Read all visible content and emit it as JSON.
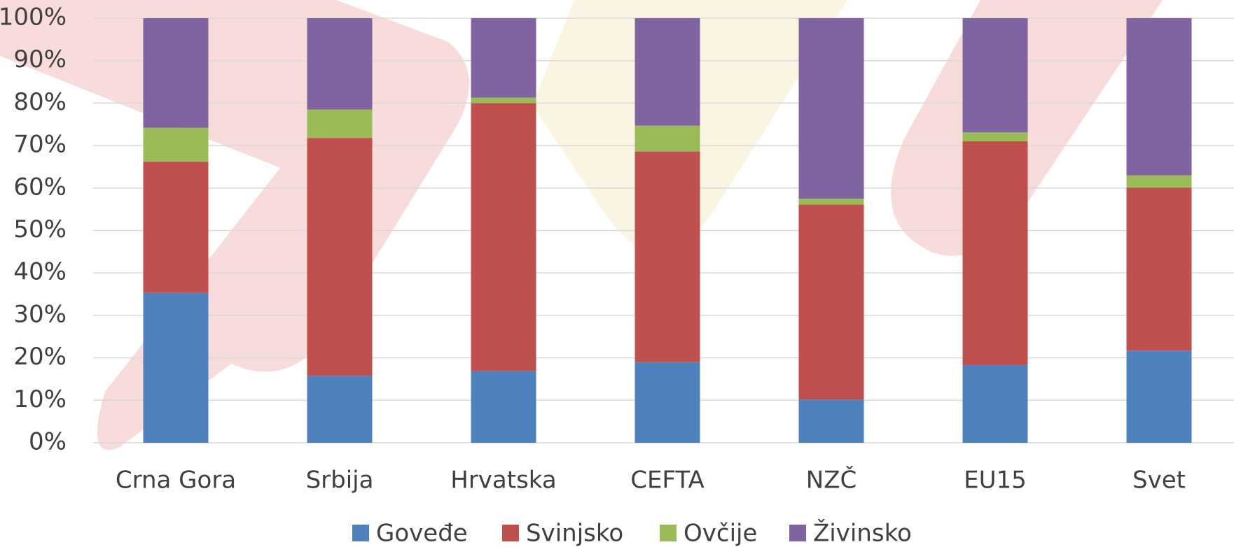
{
  "chart_data": {
    "type": "stacked_bar",
    "categories": [
      "Crna Gora",
      "Srbija",
      "Hrvatska",
      "CEFTA",
      "NZČ",
      "EU15",
      "Svet"
    ],
    "series": [
      {
        "name": "Goveđe",
        "color": "#4f81bd",
        "values": [
          35.3,
          15.8,
          16.9,
          19,
          10.2,
          18.3,
          21.7
        ]
      },
      {
        "name": "Svinjsko",
        "color": "#c0504d",
        "values": [
          30.9,
          56,
          63.1,
          49.6,
          45.9,
          52.7,
          38.4
        ]
      },
      {
        "name": "Ovčije",
        "color": "#9bbb59",
        "values": [
          8,
          6.7,
          1.3,
          6.1,
          1.4,
          2.1,
          2.9
        ]
      },
      {
        "name": "Živinsko",
        "color": "#8064a2",
        "values": [
          25.8,
          21.5,
          18.7,
          25.3,
          42.5,
          26.9,
          37
        ]
      }
    ],
    "ylim": [
      0,
      100
    ],
    "yticks": [
      {
        "value": 0,
        "label": "0%"
      },
      {
        "value": 10,
        "label": "10%"
      },
      {
        "value": 20,
        "label": "20%"
      },
      {
        "value": 30,
        "label": "30%"
      },
      {
        "value": 40,
        "label": "40%"
      },
      {
        "value": 50,
        "label": "50%"
      },
      {
        "value": 60,
        "label": "60%"
      },
      {
        "value": 70,
        "label": "70%"
      },
      {
        "value": 80,
        "label": "80%"
      },
      {
        "value": 90,
        "label": "90%"
      },
      {
        "value": 100,
        "label": "100%"
      }
    ],
    "grid": true,
    "legend": "bottom"
  }
}
